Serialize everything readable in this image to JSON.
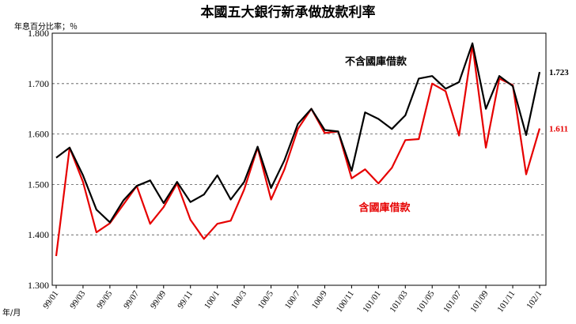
{
  "chart_data": {
    "type": "line",
    "title": "本國五大銀行新承做放款利率",
    "ylabel": "年息百分比率；％",
    "xlabel": "年/月",
    "ylim": [
      1.3,
      1.8
    ],
    "yticks": [
      "1.300",
      "1.400",
      "1.500",
      "1.600",
      "1.700",
      "1.800"
    ],
    "grid": "horizontal dashed",
    "x_tick_labels": [
      "99/01",
      "99/03",
      "99/05",
      "99/07",
      "99/09",
      "99/11",
      "100/1",
      "100/3",
      "100/5",
      "100/7",
      "100/9",
      "100/11",
      "101/01",
      "101/03",
      "101/05",
      "101/07",
      "101/09",
      "101/11",
      "102/1"
    ],
    "series": [
      {
        "name": "不含國庫借款",
        "color": "#000000",
        "end_label": "1.723",
        "values": [
          1.553,
          1.573,
          1.518,
          1.45,
          1.425,
          1.468,
          1.497,
          1.508,
          1.463,
          1.505,
          1.465,
          1.48,
          1.518,
          1.47,
          1.505,
          1.575,
          1.493,
          1.548,
          1.62,
          1.65,
          1.608,
          1.605,
          1.527,
          1.643,
          1.63,
          1.61,
          1.637,
          1.71,
          1.715,
          1.69,
          1.703,
          1.78,
          1.65,
          1.715,
          1.695,
          1.598,
          1.723
        ]
      },
      {
        "name": "含國庫借款",
        "color": "#e60000",
        "end_label": "1.611",
        "values": [
          1.358,
          1.573,
          1.505,
          1.405,
          1.423,
          1.46,
          1.497,
          1.422,
          1.455,
          1.502,
          1.43,
          1.392,
          1.422,
          1.428,
          1.49,
          1.573,
          1.47,
          1.53,
          1.61,
          1.65,
          1.602,
          1.605,
          1.512,
          1.53,
          1.502,
          1.533,
          1.588,
          1.59,
          1.7,
          1.685,
          1.597,
          1.777,
          1.573,
          1.71,
          1.697,
          1.52,
          1.611
        ]
      }
    ]
  }
}
